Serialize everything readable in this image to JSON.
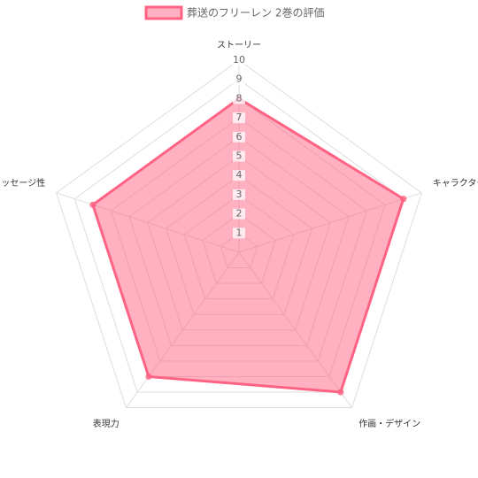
{
  "chart_data": {
    "type": "radar",
    "categories": [
      "ストーリー",
      "キャラクター",
      "作画・デザイン",
      "表現力",
      "メッセージ性"
    ],
    "series": [
      {
        "name": "葬送のフリーレン 2巻の評価",
        "color": "#ff6384",
        "values": [
          8,
          9,
          9,
          8,
          8
        ]
      }
    ],
    "ylim": [
      0,
      10
    ],
    "yticks": [
      1,
      2,
      3,
      4,
      5,
      6,
      7,
      8,
      9,
      10
    ],
    "grid": true,
    "legend": "top"
  }
}
